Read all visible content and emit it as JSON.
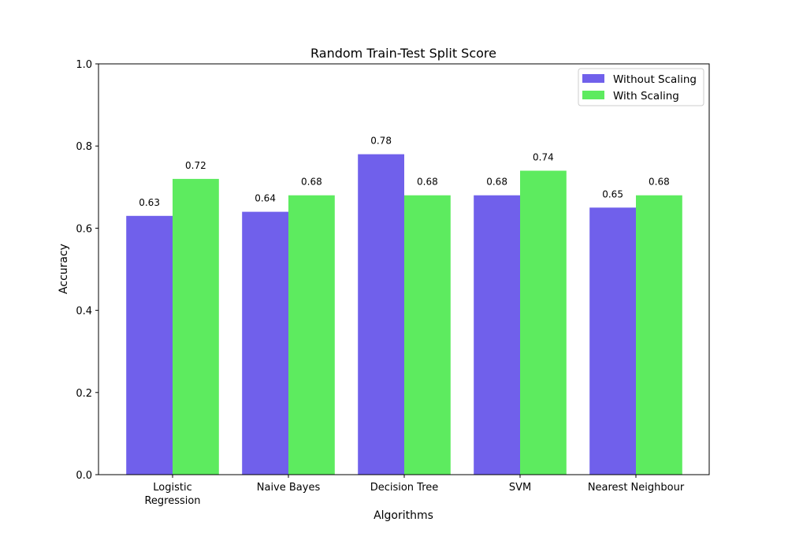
{
  "chart_data": {
    "type": "bar",
    "title": "Random Train-Test Split Score",
    "xlabel": "Algorithms",
    "ylabel": "Accuracy",
    "categories": [
      "Logistic\nRegression",
      "Naive Bayes",
      "Decision Tree",
      "SVM",
      "Nearest Neighbour"
    ],
    "series": [
      {
        "name": "Without Scaling",
        "color": "#7060eb",
        "values": [
          0.63,
          0.64,
          0.78,
          0.68,
          0.65
        ]
      },
      {
        "name": "With Scaling",
        "color": "#5deb5f",
        "values": [
          0.72,
          0.68,
          0.68,
          0.74,
          0.68
        ]
      }
    ],
    "ylim": [
      0.0,
      1.0
    ],
    "yticks": [
      "0.0",
      "0.2",
      "0.4",
      "0.6",
      "0.8",
      "1.0"
    ],
    "data_labels": true,
    "grid": false,
    "legend_position": "top-right"
  }
}
